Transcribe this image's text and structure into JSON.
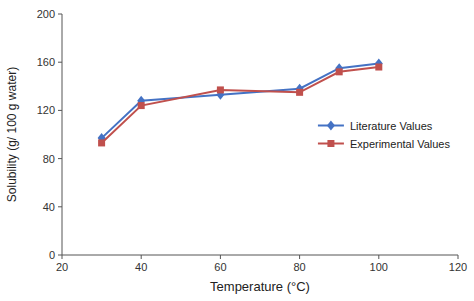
{
  "chart_data": {
    "type": "line",
    "x": [
      30,
      40,
      60,
      80,
      90,
      100
    ],
    "series": [
      {
        "name": "Literature Values",
        "color": "#4472C4",
        "marker": "diamond",
        "values": [
          97,
          128,
          133,
          138,
          155,
          159
        ]
      },
      {
        "name": "Experimental Values",
        "color": "#C0504D",
        "marker": "square",
        "values": [
          93,
          124,
          137,
          135,
          152,
          156
        ]
      }
    ],
    "xlabel": "Temperature (°C)",
    "ylabel": "Solubility (g/ 100 g water)",
    "xlim": [
      20,
      120
    ],
    "ylim": [
      0,
      200
    ],
    "xticks": [
      20,
      40,
      60,
      80,
      100,
      120
    ],
    "yticks": [
      0,
      40,
      80,
      120,
      160,
      200
    ],
    "legend": "right",
    "grid": false
  }
}
